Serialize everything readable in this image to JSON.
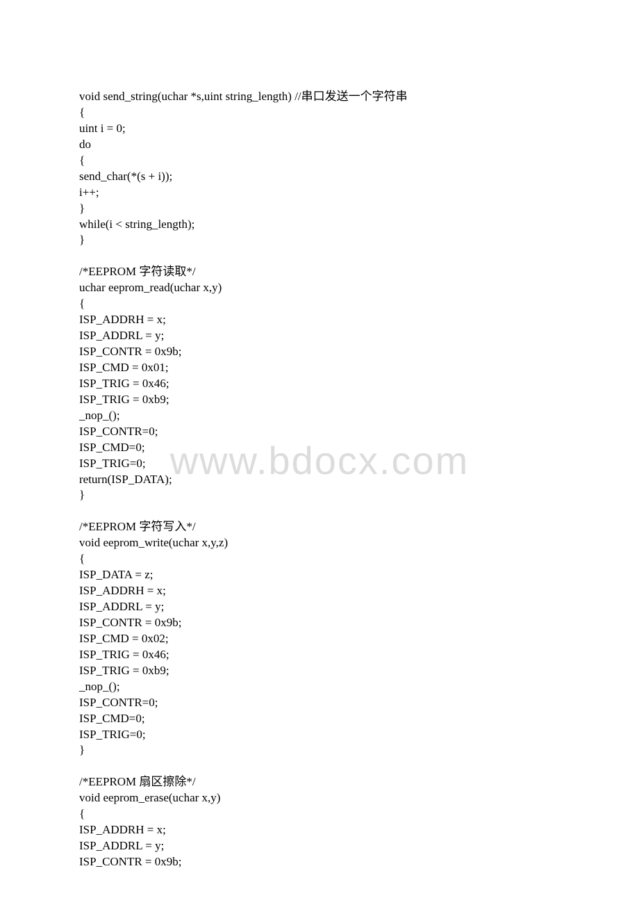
{
  "watermark": "www.bdocx.com",
  "lines": [
    "void send_string(uchar *s,uint string_length)  //串口发送一个字符串",
    "{",
    "    uint i = 0;",
    "    do",
    "        {",
    "        send_char(*(s + i));",
    "        i++;",
    "        }",
    "    while(i < string_length);",
    "}",
    "",
    "/*EEPROM 字符读取*/",
    "uchar eeprom_read(uchar x,y)",
    "{",
    "    ISP_ADDRH = x;",
    "    ISP_ADDRL = y;",
    "    ISP_CONTR = 0x9b;",
    "    ISP_CMD = 0x01;",
    "    ISP_TRIG = 0x46;",
    "    ISP_TRIG = 0xb9;",
    "    _nop_();",
    "    ISP_CONTR=0;",
    "    ISP_CMD=0;",
    "    ISP_TRIG=0;",
    "    return(ISP_DATA);",
    "}",
    "",
    "/*EEPROM 字符写入*/",
    "void eeprom_write(uchar x,y,z)",
    "{",
    "    ISP_DATA = z;",
    "    ISP_ADDRH = x;",
    "    ISP_ADDRL = y;",
    "    ISP_CONTR = 0x9b;",
    "    ISP_CMD = 0x02;",
    "    ISP_TRIG = 0x46;",
    "    ISP_TRIG = 0xb9;",
    "    _nop_();",
    "    ISP_CONTR=0;",
    "    ISP_CMD=0;",
    "    ISP_TRIG=0;",
    "}",
    "",
    "/*EEPROM 扇区擦除*/",
    "void eeprom_erase(uchar x,y)",
    "{",
    "    ISP_ADDRH = x;",
    "    ISP_ADDRL = y;",
    "    ISP_CONTR = 0x9b;"
  ]
}
